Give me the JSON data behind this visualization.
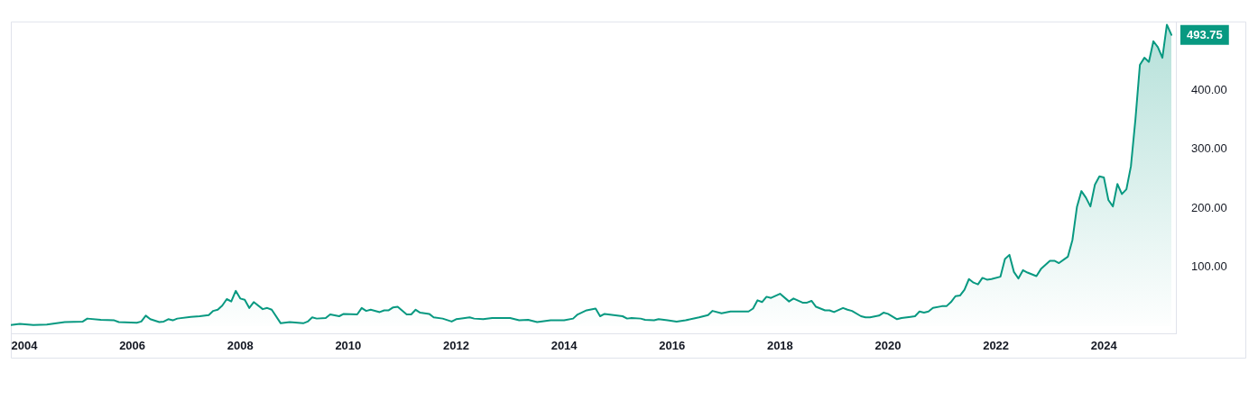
{
  "chart_data": {
    "type": "area",
    "color": "#089981",
    "marker": "none",
    "x": [
      "2003-10",
      "2003-12",
      "2004-03",
      "2004-06",
      "2004-10",
      "2005-02",
      "2005-03",
      "2005-06",
      "2005-09",
      "2005-10",
      "2006-02",
      "2006-03",
      "2006-04",
      "2006-05",
      "2006-07",
      "2006-08",
      "2006-09",
      "2006-10",
      "2006-11",
      "2007-02",
      "2007-04",
      "2007-06",
      "2007-07",
      "2007-08",
      "2007-09",
      "2007-10",
      "2007-11",
      "2007-12",
      "2008-01",
      "2008-02",
      "2008-03",
      "2008-04",
      "2008-06",
      "2008-07",
      "2008-08",
      "2008-10",
      "2008-12",
      "2009-03",
      "2009-04",
      "2009-05",
      "2009-06",
      "2009-08",
      "2009-09",
      "2009-11",
      "2009-12",
      "2010-03",
      "2010-04",
      "2010-05",
      "2010-06",
      "2010-08",
      "2010-09",
      "2010-10",
      "2010-11",
      "2010-12",
      "2011-02",
      "2011-03",
      "2011-04",
      "2011-05",
      "2011-07",
      "2011-08",
      "2011-10",
      "2011-12",
      "2012-01",
      "2012-04",
      "2012-05",
      "2012-07",
      "2012-09",
      "2013-01",
      "2013-03",
      "2013-05",
      "2013-07",
      "2013-10",
      "2014-01",
      "2014-03",
      "2014-04",
      "2014-06",
      "2014-08",
      "2014-09",
      "2014-10",
      "2014-12",
      "2015-02",
      "2015-03",
      "2015-04",
      "2015-06",
      "2015-07",
      "2015-09",
      "2015-10",
      "2015-12",
      "2016-02",
      "2016-04",
      "2016-07",
      "2016-09",
      "2016-10",
      "2016-12",
      "2017-02",
      "2017-06",
      "2017-07",
      "2017-08",
      "2017-09",
      "2017-10",
      "2017-11",
      "2018-01",
      "2018-03",
      "2018-04",
      "2018-06",
      "2018-07",
      "2018-08",
      "2018-09",
      "2018-11",
      "2018-12",
      "2019-01",
      "2019-03",
      "2019-04",
      "2019-05",
      "2019-07",
      "2019-08",
      "2019-09",
      "2019-11",
      "2019-12",
      "2020-01",
      "2020-03",
      "2020-04",
      "2020-06",
      "2020-07",
      "2020-08",
      "2020-09",
      "2020-10",
      "2020-11",
      "2021-01",
      "2021-02",
      "2021-03",
      "2021-04",
      "2021-05",
      "2021-06",
      "2021-07",
      "2021-08",
      "2021-09",
      "2021-10",
      "2021-11",
      "2021-12",
      "2022-02",
      "2022-03",
      "2022-04",
      "2022-05",
      "2022-06",
      "2022-07",
      "2022-08",
      "2022-10",
      "2022-11",
      "2023-01",
      "2023-02",
      "2023-03",
      "2023-05",
      "2023-06",
      "2023-07",
      "2023-08",
      "2023-09",
      "2023-10",
      "2023-11",
      "2023-12",
      "2024-01",
      "2024-02",
      "2024-03",
      "2024-04",
      "2024-05",
      "2024-06",
      "2024-07",
      "2024-08",
      "2024-09",
      "2024-10",
      "2024-11",
      "2024-12",
      "2025-01",
      "2025-02",
      "2025-03",
      "2025-04"
    ],
    "values": [
      2,
      4,
      2,
      3,
      7,
      8,
      13,
      11,
      10,
      7,
      6,
      8,
      18,
      12,
      7,
      8,
      12,
      10,
      13,
      16,
      17,
      19,
      26,
      28,
      35,
      46,
      42,
      60,
      47,
      45,
      31,
      41,
      29,
      31,
      28,
      5,
      7,
      5,
      8,
      15,
      13,
      14,
      20,
      17,
      21,
      20,
      31,
      26,
      28,
      24,
      27,
      27,
      32,
      33,
      20,
      20,
      28,
      23,
      21,
      15,
      13,
      8,
      12,
      15,
      13,
      12,
      14,
      14,
      10,
      11,
      7,
      10,
      10,
      13,
      20,
      27,
      30,
      17,
      21,
      19,
      17,
      13,
      14,
      13,
      11,
      10,
      12,
      10,
      8,
      10,
      15,
      19,
      26,
      22,
      25,
      25,
      30,
      44,
      41,
      50,
      48,
      55,
      42,
      47,
      40,
      40,
      43,
      33,
      27,
      27,
      24,
      31,
      28,
      26,
      17,
      15,
      15,
      18,
      23,
      21,
      12,
      14,
      16,
      17,
      25,
      23,
      25,
      31,
      34,
      34,
      41,
      51,
      52,
      62,
      80,
      74,
      71,
      82,
      79,
      80,
      84,
      114,
      121,
      92,
      81,
      95,
      91,
      85,
      97,
      111,
      111,
      107,
      118,
      146,
      202,
      229,
      218,
      203,
      240,
      254,
      252,
      214,
      203,
      241,
      224,
      232,
      271,
      350,
      443,
      455,
      448,
      483,
      473,
      455,
      511,
      493.75
    ],
    "xlim": [
      "2003-10",
      "2025-05"
    ],
    "xticks": [
      "2004",
      "2006",
      "2008",
      "2010",
      "2012",
      "2014",
      "2016",
      "2018",
      "2020",
      "2022",
      "2024"
    ],
    "ylim": [
      -12,
      515
    ],
    "yticks": [
      {
        "value": 100,
        "label": "100.00"
      },
      {
        "value": 200,
        "label": "200.00"
      },
      {
        "value": 300,
        "label": "300.00"
      },
      {
        "value": 400,
        "label": "400.00"
      }
    ],
    "annotations": [
      {
        "text": "493.75",
        "x": "2025-04",
        "y": 493.75
      }
    ]
  }
}
